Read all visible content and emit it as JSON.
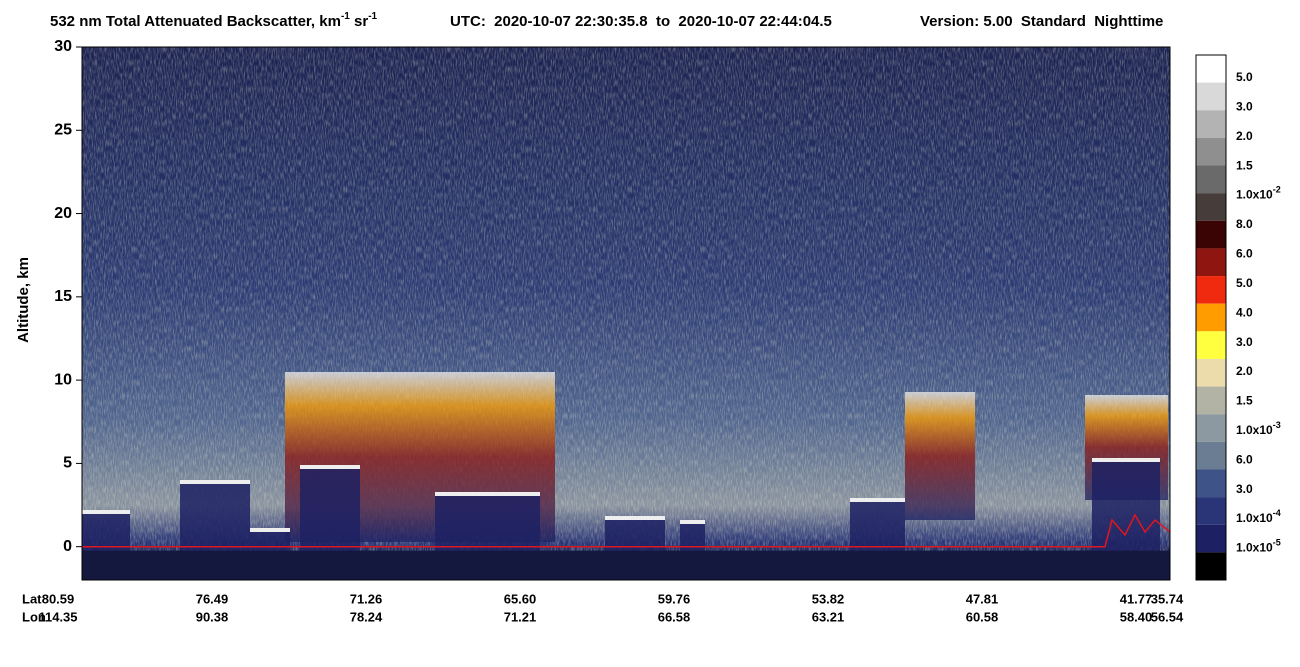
{
  "chart_data": {
    "type": "heatmap",
    "title": [
      "532 nm Total Attenuated Backscatter, km",
      "-1",
      " sr",
      "-1"
    ],
    "subtitle": "UTC:  2020-10-07 22:30:35.8  to  2020-10-07 22:44:04.5",
    "version": "Version: 5.00  Standard  Nighttime",
    "ylabel": "Altitude, km",
    "ylim": [
      -2,
      30
    ],
    "yticks": [
      0,
      5,
      10,
      15,
      20,
      25,
      30
    ],
    "x_rows": [
      {
        "name": "Lat",
        "labels": [
          "80.59",
          "76.49",
          "71.26",
          "65.60",
          "59.76",
          "53.82",
          "47.81",
          "41.77",
          "35.74"
        ]
      },
      {
        "name": "Lon",
        "labels": [
          "114.35",
          "90.38",
          "78.24",
          "71.21",
          "66.58",
          "63.21",
          "60.58",
          "58.40",
          "56.54"
        ]
      }
    ],
    "colorbar": {
      "colors": [
        "#ffffff",
        "#d9d9d9",
        "#b3b3b3",
        "#8f8f8f",
        "#6a6a6a",
        "#463c39",
        "#3a0404",
        "#8e1510",
        "#ef2a0e",
        "#ff9c00",
        "#ffff40",
        "#ecdcab",
        "#b2b3a5",
        "#8d99a1",
        "#6b7d92",
        "#3e5387",
        "#2a3577",
        "#1d2163",
        "#000000"
      ],
      "labels": [
        "5.0",
        "3.0",
        "2.0",
        "1.5",
        {
          "base": "1.0x10",
          "exp": "-2"
        },
        "8.0",
        "6.0",
        "5.0",
        "4.0",
        "3.0",
        "2.0",
        "1.5",
        {
          "base": "1.0x10",
          "exp": "-3"
        },
        "6.0",
        "3.0",
        {
          "base": "1.0x10",
          "exp": "-4"
        },
        {
          "base": "1.0x10",
          "exp": "-5"
        }
      ]
    }
  }
}
